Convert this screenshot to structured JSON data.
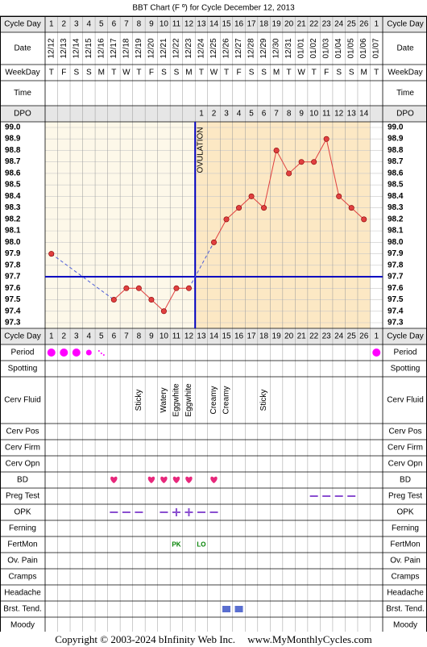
{
  "title": "BBT Chart (F º) for Cycle December 12, 2013",
  "footer": {
    "copyright": "Copyright © 2003-2024 bInfinity Web Inc.",
    "site": "www.MyMonthlyCycles.com"
  },
  "colors": {
    "follicular_bg": "#fdf8e9",
    "luteal_bg": "#fce8c4",
    "temp_line": "#e04040",
    "coverline": "#0000c0",
    "period": "#ff00ff",
    "bd_heart": "#e8287c",
    "test_dash": "#8a4fd0",
    "fertmon": "#008000",
    "breast_tenderness": "#5a6fd0"
  },
  "row_labels": {
    "cycle_day": "Cycle Day",
    "date": "Date",
    "weekday": "WeekDay",
    "time": "Time",
    "dpo": "DPO",
    "period": "Period",
    "spotting": "Spotting",
    "cerv_fluid": "Cerv Fluid",
    "cerv_pos": "Cerv Pos",
    "cerv_firm": "Cerv Firm",
    "cerv_opn": "Cerv Opn",
    "bd": "BD",
    "preg_test": "Preg Test",
    "opk": "OPK",
    "ferning": "Ferning",
    "fertmon": "FertMon",
    "ov_pain": "Ov. Pain",
    "cramps": "Cramps",
    "headache": "Headache",
    "brst_tend": "Brst. Tend.",
    "moody": "Moody"
  },
  "cycle_days": [
    "1",
    "2",
    "3",
    "4",
    "5",
    "6",
    "7",
    "8",
    "9",
    "10",
    "11",
    "12",
    "13",
    "14",
    "15",
    "16",
    "17",
    "18",
    "19",
    "20",
    "21",
    "22",
    "23",
    "24",
    "25",
    "26",
    "1"
  ],
  "dates": [
    "12/12",
    "12/13",
    "12/14",
    "12/15",
    "12/16",
    "12/17",
    "12/18",
    "12/19",
    "12/20",
    "12/21",
    "12/22",
    "12/23",
    "12/24",
    "12/25",
    "12/26",
    "12/27",
    "12/28",
    "12/29",
    "12/30",
    "12/31",
    "01/01",
    "01/02",
    "01/03",
    "01/04",
    "01/05",
    "01/06",
    "01/07"
  ],
  "weekdays": [
    "T",
    "F",
    "S",
    "S",
    "M",
    "T",
    "W",
    "T",
    "F",
    "S",
    "S",
    "M",
    "T",
    "W",
    "T",
    "F",
    "S",
    "S",
    "M",
    "T",
    "W",
    "T",
    "F",
    "S",
    "S",
    "M",
    "T"
  ],
  "dpo": [
    "",
    "",
    "",
    "",
    "",
    "",
    "",
    "",
    "",
    "",
    "",
    "",
    "1",
    "2",
    "3",
    "4",
    "5",
    "6",
    "7",
    "8",
    "9",
    "10",
    "11",
    "12",
    "13",
    "14",
    ""
  ],
  "ovulation_label": "OVULATION",
  "chart_data": {
    "type": "line",
    "title": "BBT Chart (F º) for Cycle December 12, 2013",
    "x_label": "Cycle Day",
    "y_label": "",
    "y_range": [
      97.3,
      99.0
    ],
    "y_ticks": [
      "99.0",
      "98.9",
      "98.8",
      "98.7",
      "98.6",
      "98.5",
      "98.4",
      "98.3",
      "98.2",
      "98.1",
      "98.0",
      "97.9",
      "97.8",
      "97.7",
      "97.6",
      "97.5",
      "97.4",
      "97.3"
    ],
    "grid": true,
    "coverline": 97.7,
    "ovulation_day": 12,
    "series": [
      {
        "values": [
          97.9,
          null,
          null,
          null,
          null,
          97.5,
          97.6,
          97.6,
          97.5,
          97.4,
          97.6,
          97.6,
          null,
          98.0,
          98.2,
          98.3,
          98.4,
          98.3,
          98.8,
          98.6,
          98.7,
          98.7,
          98.9,
          98.4,
          98.3,
          98.2,
          null
        ]
      }
    ]
  },
  "observations": {
    "period": [
      "heavy",
      "heavy",
      "heavy",
      "medium",
      "spotty",
      "",
      "",
      "",
      "",
      "",
      "",
      "",
      "",
      "",
      "",
      "",
      "",
      "",
      "",
      "",
      "",
      "",
      "",
      "",
      "",
      "",
      "heavy"
    ],
    "cerv_fluid": [
      "",
      "",
      "",
      "",
      "",
      "",
      "",
      "Sticky",
      "",
      "Watery",
      "Eggwhite",
      "Eggwhite",
      "",
      "Creamy",
      "Creamy",
      "",
      "",
      "Sticky",
      "",
      "",
      "",
      "",
      "",
      "",
      "",
      "",
      ""
    ],
    "bd": [
      6,
      9,
      10,
      11,
      12,
      14
    ],
    "preg_test": [
      22,
      23,
      24,
      25
    ],
    "opk": [
      {
        "day": 6,
        "result": "negative"
      },
      {
        "day": 7,
        "result": "negative"
      },
      {
        "day": 8,
        "result": "negative"
      },
      {
        "day": 10,
        "result": "negative"
      },
      {
        "day": 11,
        "result": "positive"
      },
      {
        "day": 12,
        "result": "positive"
      },
      {
        "day": 13,
        "result": "negative"
      },
      {
        "day": 14,
        "result": "negative"
      }
    ],
    "fertmon": [
      {
        "day": 11,
        "label": "PK"
      },
      {
        "day": 13,
        "label": "LO"
      }
    ],
    "brst_tend": [
      15,
      16
    ]
  }
}
